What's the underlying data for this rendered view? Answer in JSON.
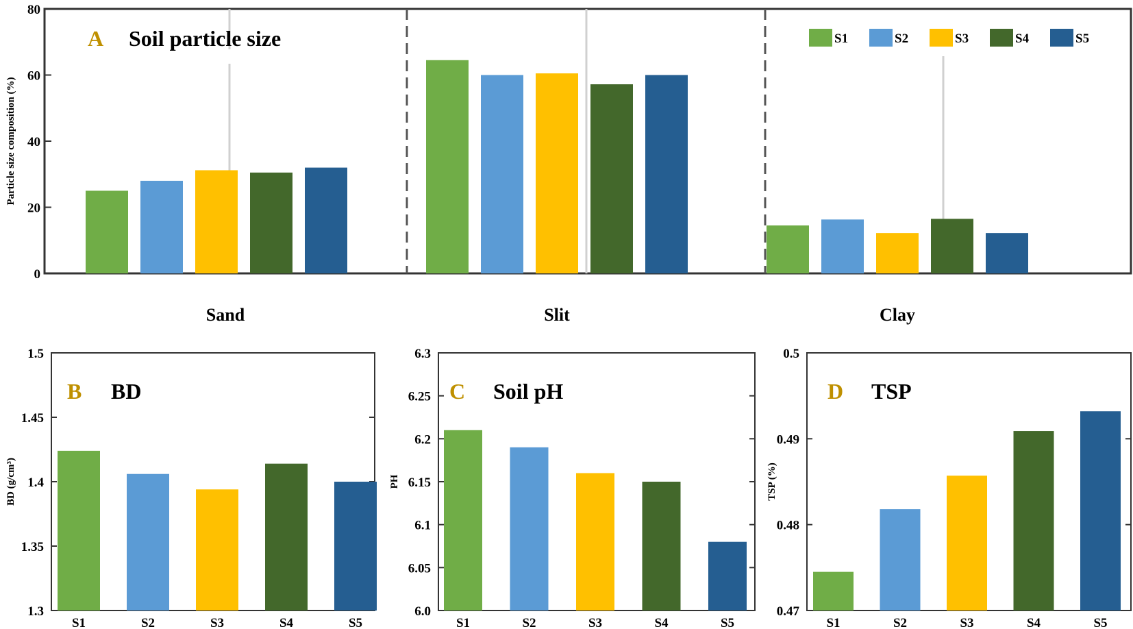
{
  "colors": {
    "S1": "#70ad47",
    "S2": "#5b9bd5",
    "S3": "#ffc000",
    "S4": "#43682b",
    "S5": "#255e91",
    "letter": "#bf9000",
    "frame": "#333333"
  },
  "chart_data": [
    {
      "id": "A",
      "type": "bar",
      "letter": "A",
      "title": "Soil particle size",
      "ylabel": "Particle size composition (%)",
      "xlabel": "",
      "ylim": [
        0,
        80
      ],
      "yticks": [
        "0",
        "20",
        "40",
        "60",
        "80"
      ],
      "categories": [
        "Sand",
        "Slit",
        "Clay"
      ],
      "legend": [
        "S1",
        "S2",
        "S3",
        "S4",
        "S5"
      ],
      "legend_position": "top-right",
      "series": [
        {
          "name": "S1",
          "values": [
            25.0,
            64.5,
            14.5
          ]
        },
        {
          "name": "S2",
          "values": [
            28.0,
            60.0,
            16.3
          ]
        },
        {
          "name": "S3",
          "values": [
            31.2,
            60.5,
            12.2
          ]
        },
        {
          "name": "S4",
          "values": [
            30.5,
            57.2,
            16.5
          ]
        },
        {
          "name": "S5",
          "values": [
            32.0,
            60.0,
            12.2
          ]
        }
      ]
    },
    {
      "id": "B",
      "type": "bar",
      "letter": "B",
      "title": "BD",
      "ylabel": "BD (g/cm³)",
      "ylim": [
        1.3,
        1.5
      ],
      "yticks": [
        "1.3",
        "1.35",
        "1.4",
        "1.45",
        "1.5"
      ],
      "categories": [
        "S1",
        "S2",
        "S3",
        "S4",
        "S5"
      ],
      "values": [
        1.424,
        1.406,
        1.394,
        1.414,
        1.4
      ]
    },
    {
      "id": "C",
      "type": "bar",
      "letter": "C",
      "title": "Soil pH",
      "ylabel": "PH",
      "ylim": [
        6.0,
        6.3
      ],
      "yticks": [
        "6.0",
        "6.05",
        "6.1",
        "6.15",
        "6.2",
        "6.25",
        "6.3"
      ],
      "categories": [
        "S1",
        "S2",
        "S3",
        "S4",
        "S5"
      ],
      "values": [
        6.21,
        6.19,
        6.16,
        6.15,
        6.08
      ]
    },
    {
      "id": "D",
      "type": "bar",
      "letter": "D",
      "title": "TSP",
      "ylabel": "TSP (%)",
      "ylim": [
        0.47,
        0.5
      ],
      "yticks": [
        "0.47",
        "0.48",
        "0.49",
        "0.5"
      ],
      "categories": [
        "S1",
        "S2",
        "S3",
        "S4",
        "S5"
      ],
      "values": [
        0.4745,
        0.4818,
        0.4857,
        0.4909,
        0.4932
      ]
    }
  ]
}
